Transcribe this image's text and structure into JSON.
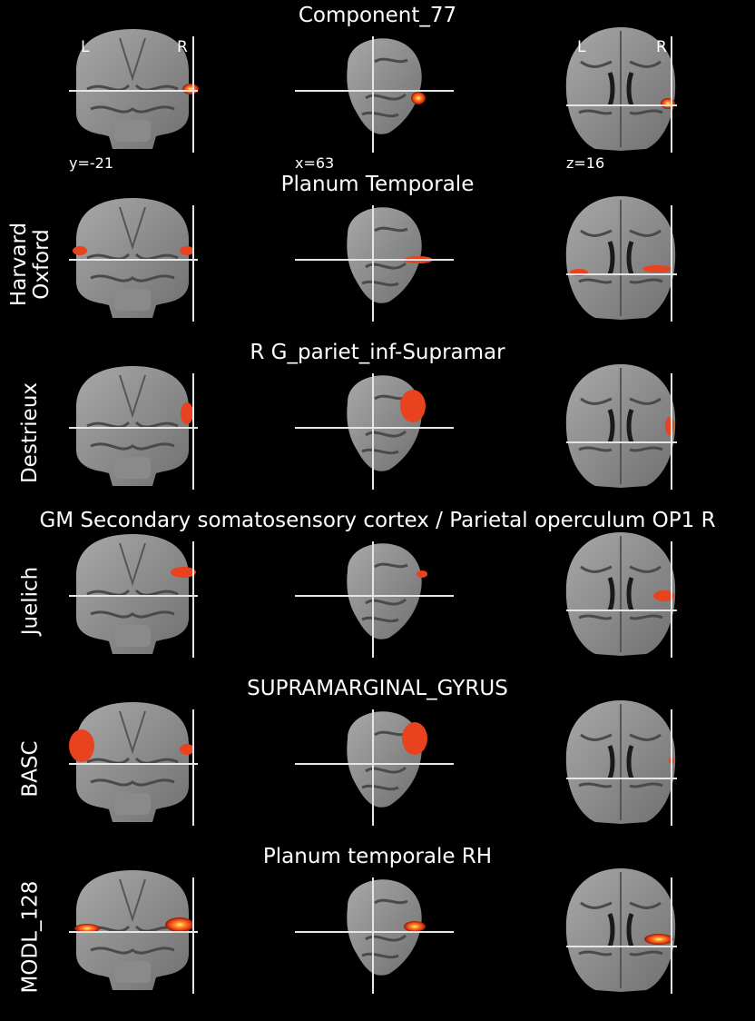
{
  "colors": {
    "background": "#000000",
    "crosshair": "#e6e6e6",
    "activation": [
      "#8b1a00",
      "#e8421e",
      "#ff8c1a",
      "#fff4a0"
    ]
  },
  "rows": [
    {
      "title": "Component_77",
      "atlas_label": "",
      "coords": {
        "coronal": "y=-21",
        "sagittal": "x=63",
        "axial": "z=16"
      },
      "orientation": {
        "left": "L",
        "right": "R"
      }
    },
    {
      "title": "Planum Temporale",
      "atlas_label": "Harvard\nOxford"
    },
    {
      "title": "R G_pariet_inf-Supramar",
      "atlas_label": "Destrieux"
    },
    {
      "title": "GM Secondary somatosensory cortex / Parietal operculum OP1 R",
      "atlas_label": "Juelich"
    },
    {
      "title": "SUPRAMARGINAL_GYRUS",
      "atlas_label": "BASC"
    },
    {
      "title": "Planum temporale RH",
      "atlas_label": "MODL_128"
    }
  ]
}
